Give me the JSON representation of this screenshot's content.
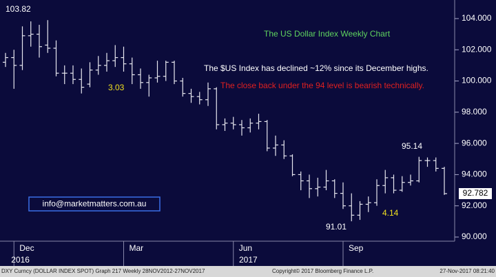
{
  "chart_data": {
    "type": "ohlc",
    "categories": [
      null,
      "Dec",
      null,
      null,
      null,
      null,
      null,
      null,
      null,
      null,
      null,
      null,
      null,
      null,
      "Mar",
      null,
      null,
      null,
      null,
      null,
      null,
      null,
      null,
      null,
      null,
      null,
      null,
      "Jun",
      null,
      null,
      null,
      null,
      null,
      null,
      null,
      null,
      null,
      null,
      null,
      null,
      "Sep",
      null,
      null,
      null,
      null,
      null,
      null,
      null,
      null,
      null,
      null,
      null,
      null
    ],
    "category_years": [
      null,
      "2016",
      null,
      null,
      null,
      null,
      null,
      null,
      null,
      null,
      null,
      null,
      null,
      null,
      null,
      null,
      null,
      null,
      null,
      null,
      null,
      null,
      null,
      null,
      null,
      null,
      null,
      null,
      "2017",
      null,
      null,
      null,
      null,
      null,
      null,
      null,
      null,
      null,
      null,
      null,
      null,
      null,
      null,
      null,
      null,
      null,
      null,
      null,
      null,
      null,
      null,
      null,
      null
    ],
    "open": [
      101.2,
      101.5,
      101.0,
      102.9,
      103.0,
      102.3,
      102.1,
      100.5,
      100.5,
      100.1,
      99.8,
      100.7,
      101.0,
      101.3,
      101.5,
      101.1,
      100.4,
      99.9,
      100.2,
      100.3,
      101.2,
      100.0,
      99.2,
      99.0,
      98.8,
      99.5,
      97.2,
      97.3,
      97.2,
      97.0,
      97.3,
      97.4,
      95.7,
      95.9,
      95.2,
      94.0,
      93.6,
      93.1,
      93.2,
      93.6,
      92.8,
      92.0,
      91.4,
      92.1,
      92.2,
      93.3,
      93.8,
      93.0,
      93.5,
      93.6,
      94.9,
      94.9,
      94.4
    ],
    "high": [
      101.8,
      102.0,
      103.5,
      103.82,
      103.6,
      103.9,
      102.6,
      101.0,
      101.0,
      100.8,
      101.2,
      101.6,
      101.8,
      102.3,
      102.2,
      101.5,
      100.8,
      100.4,
      101.3,
      101.3,
      101.3,
      100.2,
      99.5,
      99.3,
      99.9,
      99.6,
      97.6,
      97.7,
      97.5,
      97.6,
      97.9,
      97.5,
      96.5,
      96.2,
      95.3,
      94.2,
      94.0,
      93.8,
      94.3,
      93.7,
      93.5,
      92.8,
      92.3,
      92.6,
      93.7,
      94.3,
      94.0,
      93.9,
      94.0,
      95.14,
      95.1,
      95.1,
      94.5
    ],
    "low": [
      100.9,
      99.5,
      100.7,
      102.2,
      101.5,
      101.8,
      100.3,
      99.8,
      99.8,
      99.2,
      99.6,
      100.4,
      100.6,
      100.9,
      100.6,
      99.8,
      99.5,
      99.0,
      99.9,
      100.0,
      99.8,
      99.0,
      98.6,
      98.5,
      98.4,
      96.9,
      96.8,
      96.9,
      96.5,
      96.7,
      96.9,
      95.5,
      95.2,
      95.0,
      93.9,
      93.0,
      92.5,
      92.6,
      93.0,
      92.5,
      91.8,
      91.01,
      91.1,
      91.6,
      92.0,
      92.8,
      92.8,
      92.9,
      93.3,
      93.5,
      94.5,
      94.2,
      92.7
    ],
    "close": [
      101.5,
      101.0,
      102.9,
      103.0,
      102.2,
      102.1,
      100.5,
      100.5,
      100.1,
      99.6,
      100.7,
      101.0,
      101.3,
      101.5,
      101.1,
      100.4,
      99.9,
      100.2,
      100.3,
      101.2,
      100.0,
      99.2,
      99.0,
      98.8,
      99.5,
      97.2,
      97.3,
      97.2,
      97.0,
      97.3,
      97.4,
      95.7,
      95.9,
      95.2,
      94.0,
      93.6,
      93.1,
      93.2,
      93.6,
      92.8,
      92.0,
      91.4,
      92.1,
      92.2,
      93.3,
      93.8,
      93.0,
      93.5,
      93.6,
      94.9,
      94.9,
      94.4,
      92.782
    ],
    "color": "#e8e8f0",
    "ylim": [
      89.735,
      105.19
    ],
    "yticks": [
      {
        "value": 90,
        "label": "90.000"
      },
      {
        "value": 92,
        "label": "92.000"
      },
      {
        "value": 94,
        "label": "94.000"
      },
      {
        "value": 96,
        "label": "96.000"
      },
      {
        "value": 98,
        "label": "98.000"
      },
      {
        "value": 100,
        "label": "100.000"
      },
      {
        "value": 102,
        "label": "102.000"
      },
      {
        "value": 104,
        "label": "104.000"
      }
    ],
    "annotations": [
      {
        "text": "103.82",
        "color": "#ffffff"
      },
      {
        "text": "3.03",
        "color": "#f0e020"
      },
      {
        "text": "95.14",
        "color": "#ffffff"
      },
      {
        "text": "91.01",
        "color": "#ffffff"
      },
      {
        "text": "4.14",
        "color": "#f0e020"
      },
      {
        "text": "The US Dollar Index Weekly Chart",
        "color": "#5fd35f"
      },
      {
        "text": "The $US Index has declined ~12% since its December highs.",
        "color": "#ffffff"
      },
      {
        "text": "The close back under the 94 level is bearish technically.",
        "color": "#e02020"
      }
    ],
    "watermark": "info@marketmatters.com.au",
    "footer": [
      "DXY Curncy (DOLLAR INDEX SPOT) Graph 217  Weekly 28NOV2012-27NOV2017",
      "Copyright© 2017 Bloomberg Finance L.P.",
      "27-Nov-2017 08:21:40"
    ]
  }
}
